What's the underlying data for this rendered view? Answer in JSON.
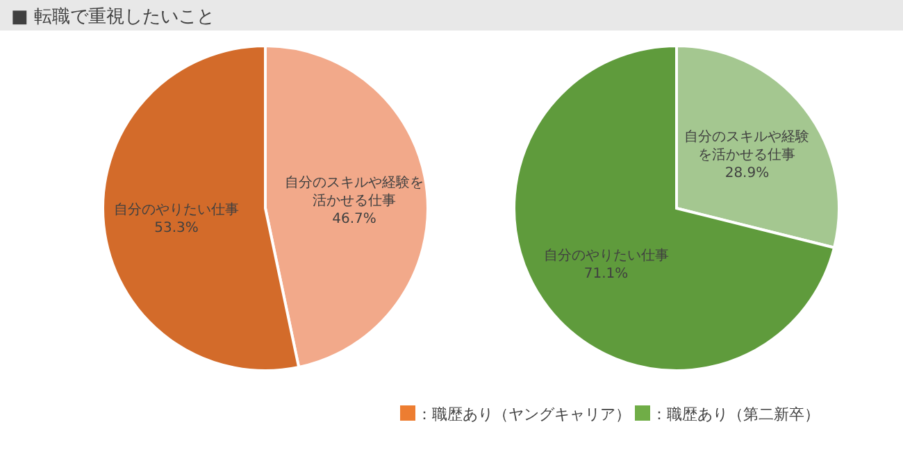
{
  "chart_data": [
    {
      "type": "pie",
      "title": "■ 転職で重視したいこと",
      "categories": [
        "自分のスキルや経験を活かせる仕事",
        "自分のやりたい仕事"
      ],
      "legend": "bottom",
      "series": [
        {
          "name": "：職歴あり（ヤングキャリア）",
          "color": "#ed7d31",
          "colors": [
            "#f2a98a",
            "#d36b2a"
          ],
          "values": [
            46.7,
            53.3
          ],
          "value_labels": [
            "46.7%",
            "53.3%"
          ]
        }
      ]
    },
    {
      "type": "pie",
      "categories": [
        "自分のスキルや経験を活かせる仕事",
        "自分のやりたい仕事"
      ],
      "legend": "bottom",
      "series": [
        {
          "name": "：職歴あり（第二新卒）",
          "color": "#70ad47",
          "colors": [
            "#a4c790",
            "#5f9b3c"
          ],
          "values": [
            28.9,
            71.1
          ],
          "value_labels": [
            "28.9%",
            "71.1%"
          ]
        }
      ]
    }
  ]
}
